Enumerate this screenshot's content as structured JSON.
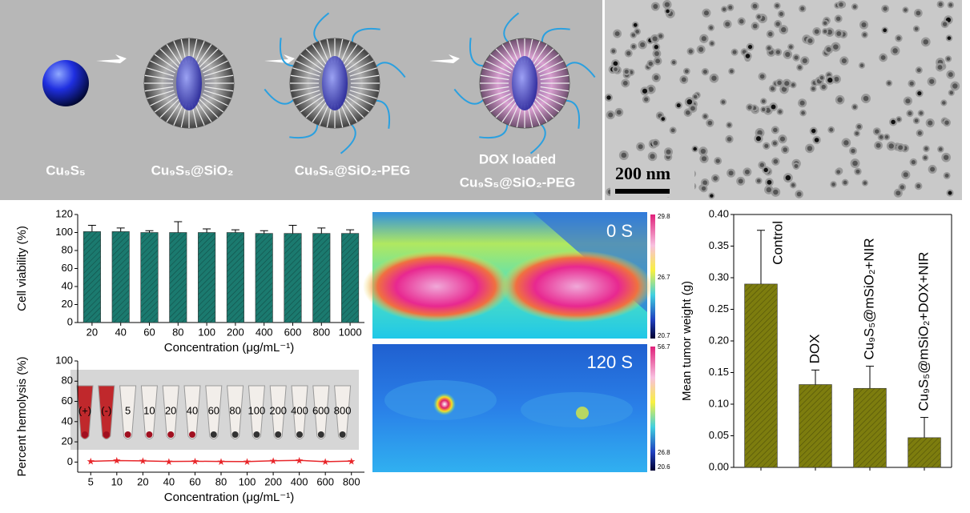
{
  "schematic": {
    "labels": [
      "Cu₉S₅",
      "Cu₉S₅@SiO₂",
      "Cu₉S₅@SiO₂-PEG",
      [
        "DOX loaded",
        "Cu₉S₅@SiO₂-PEG"
      ]
    ]
  },
  "tem": {
    "scale_bar": "200 nm"
  },
  "thermal": {
    "panels": [
      {
        "time": "0 S",
        "colorbar": [
          29.8,
          26.7,
          20.7
        ]
      },
      {
        "time": "120 S",
        "colorbar": [
          56.7,
          26.8,
          20.6
        ]
      }
    ]
  },
  "hemolysis_inset": {
    "tube_labels": [
      "(+)",
      "(-)",
      "5",
      "10",
      "20",
      "40",
      "60",
      "80",
      "100",
      "200",
      "400",
      "600",
      "800"
    ]
  },
  "chart_data": [
    {
      "type": "bar",
      "y_label": "Cell viability (%)",
      "x_label": "Concentration (μg/mL⁻¹)",
      "categories": [
        "20",
        "40",
        "60",
        "80",
        "100",
        "200",
        "400",
        "600",
        "800",
        "1000"
      ],
      "values": [
        101,
        101,
        100,
        100,
        100,
        100,
        99,
        99,
        99,
        99
      ],
      "errors": [
        7,
        4,
        2,
        12,
        4,
        3,
        3,
        9,
        6,
        4
      ],
      "color": "#1b7a6f",
      "ylim": [
        0,
        120
      ],
      "yticks": [
        0,
        20,
        40,
        60,
        80,
        100,
        120
      ]
    },
    {
      "type": "line",
      "y_label": "Percent hemolysis (%)",
      "x_label": "Concentration (μg/mL⁻¹)",
      "categories": [
        "5",
        "10",
        "20",
        "40",
        "60",
        "80",
        "100",
        "200",
        "400",
        "600",
        "800"
      ],
      "values": [
        0.8,
        1.5,
        1.2,
        0.6,
        0.8,
        0.6,
        0.5,
        1.3,
        1.7,
        0.4,
        1.0
      ],
      "color": "#e8262a",
      "ylim": [
        -10,
        100
      ],
      "yticks": [
        0,
        20,
        40,
        60,
        80,
        100
      ]
    },
    {
      "type": "bar",
      "y_label": "Mean tumor weight (g)",
      "categories": [
        "Control",
        "DOX",
        "Cu₉S₅@mSiO₂+NIR",
        "Cu₉S₅@mSiO₂+DOX+NIR"
      ],
      "values": [
        0.29,
        0.131,
        0.125,
        0.047
      ],
      "errors": [
        0.085,
        0.023,
        0.035,
        0.032
      ],
      "color": "#7d7d0e",
      "ylim": [
        0,
        0.4
      ],
      "yticks": [
        {
          "value": 0,
          "label": "0.00"
        },
        {
          "value": 0.05,
          "label": "0.05"
        },
        {
          "value": 0.1,
          "label": "0.10"
        },
        {
          "value": 0.15,
          "label": "0.15"
        },
        {
          "value": 0.2,
          "label": "0.20"
        },
        {
          "value": 0.25,
          "label": "0.25"
        },
        {
          "value": 0.3,
          "label": "0.30"
        },
        {
          "value": 0.35,
          "label": "0.35"
        },
        {
          "value": 0.4,
          "label": "0.40"
        }
      ]
    }
  ]
}
